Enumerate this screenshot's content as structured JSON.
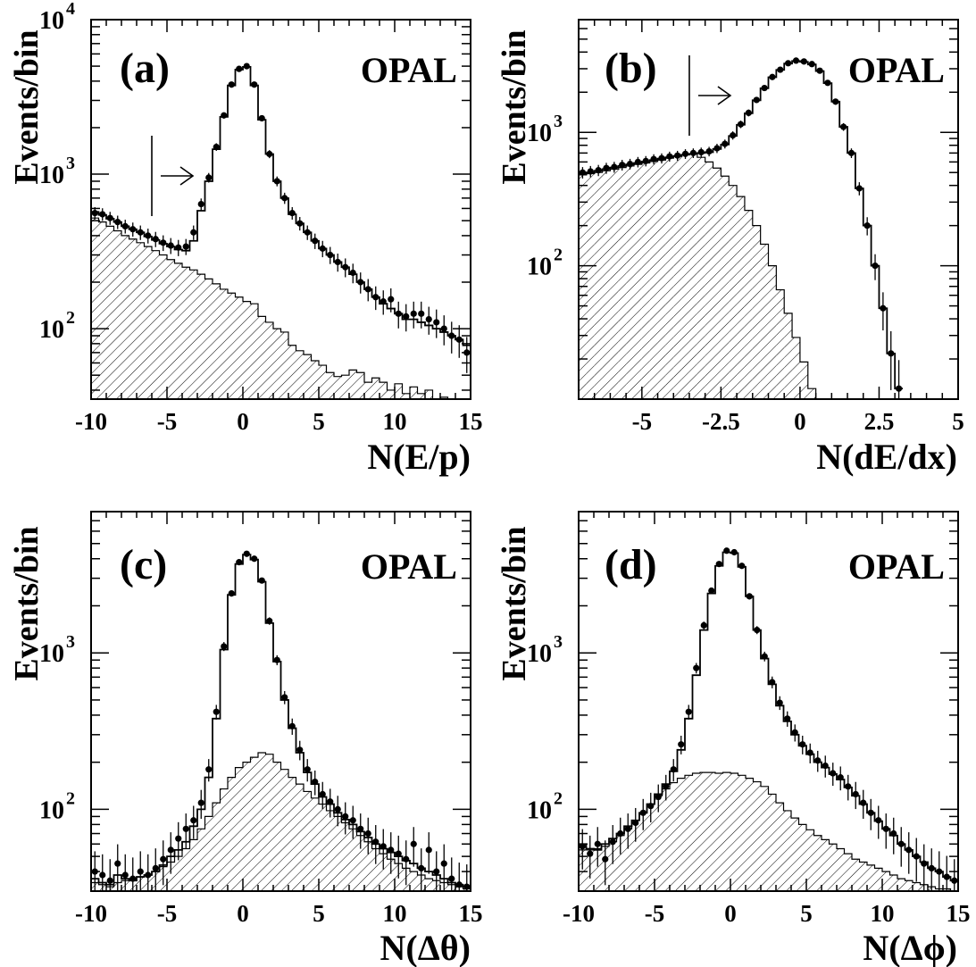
{
  "chart_data": [
    {
      "type": "histogram",
      "panel_label": "(a)",
      "experiment_label": "OPAL",
      "xlabel": "N(E/p)",
      "ylabel": "Events/bin",
      "xlim": [
        -10,
        15
      ],
      "ylim": [
        35,
        10000
      ],
      "yscale": "log",
      "xticks": [
        -10,
        -5,
        0,
        5,
        10,
        15
      ],
      "xtick_labels": [
        "-10",
        "-5",
        "0",
        "5",
        "10",
        "15"
      ],
      "yticks": [
        {
          "value": 100,
          "label_base": "10",
          "label_exp": "2"
        },
        {
          "value": 1000,
          "label_base": "10",
          "label_exp": "3"
        },
        {
          "value": 10000,
          "label_base": "10",
          "label_exp": "4"
        }
      ],
      "cut": {
        "x": -6,
        "direction": "right"
      },
      "bin_width": 0.5,
      "series": [
        {
          "role": "data_points",
          "x": [
            -9.75,
            -9.25,
            -8.75,
            -8.25,
            -7.75,
            -7.25,
            -6.75,
            -6.25,
            -5.75,
            -5.25,
            -4.75,
            -4.25,
            -3.75,
            -3.25,
            -2.75,
            -2.25,
            -1.75,
            -1.25,
            -0.75,
            -0.25,
            0.25,
            0.75,
            1.25,
            1.75,
            2.25,
            2.75,
            3.25,
            3.75,
            4.25,
            4.75,
            5.25,
            5.75,
            6.25,
            6.75,
            7.25,
            7.75,
            8.25,
            8.75,
            9.25,
            9.75,
            10.25,
            10.75,
            11.25,
            11.75,
            12.25,
            12.75,
            13.25,
            13.75,
            14.25,
            14.75
          ],
          "y": [
            560,
            550,
            520,
            490,
            460,
            440,
            420,
            400,
            380,
            360,
            345,
            335,
            340,
            420,
            640,
            950,
            1500,
            2400,
            3800,
            4800,
            5000,
            3800,
            2300,
            1350,
            900,
            700,
            560,
            480,
            420,
            370,
            330,
            300,
            270,
            250,
            230,
            200,
            180,
            160,
            150,
            155,
            125,
            120,
            125,
            125,
            115,
            110,
            100,
            90,
            85,
            70
          ]
        },
        {
          "role": "mc_total",
          "y": [
            570,
            545,
            515,
            490,
            460,
            440,
            420,
            395,
            375,
            355,
            340,
            325,
            320,
            370,
            580,
            900,
            1450,
            2350,
            3750,
            4750,
            4950,
            3750,
            2250,
            1350,
            900,
            700,
            550,
            480,
            420,
            370,
            330,
            300,
            270,
            250,
            225,
            200,
            180,
            160,
            145,
            135,
            125,
            115,
            115,
            110,
            105,
            100,
            95,
            90,
            85,
            78
          ]
        },
        {
          "role": "mc_background",
          "y": [
            520,
            490,
            460,
            430,
            400,
            380,
            360,
            340,
            320,
            300,
            280,
            265,
            250,
            240,
            225,
            210,
            195,
            180,
            170,
            160,
            150,
            145,
            120,
            110,
            100,
            95,
            78,
            72,
            68,
            62,
            58,
            52,
            49,
            50,
            54,
            52,
            45,
            48,
            45,
            40,
            44,
            38,
            42,
            38,
            40,
            35,
            36,
            35,
            35,
            35
          ]
        }
      ]
    },
    {
      "type": "histogram",
      "panel_label": "(b)",
      "experiment_label": "OPAL",
      "xlabel": "N(dE/dx)",
      "ylabel": "Events/bin",
      "xlim": [
        -7,
        5
      ],
      "ylim": [
        10,
        7000
      ],
      "yscale": "log",
      "xticks": [
        -5,
        -2.5,
        0,
        2.5,
        5
      ],
      "xtick_labels": [
        "-5",
        "-2.5",
        "0",
        "2.5",
        "5"
      ],
      "yticks": [
        {
          "value": 100,
          "label_base": "10",
          "label_exp": "2"
        },
        {
          "value": 1000,
          "label_base": "10",
          "label_exp": "3"
        }
      ],
      "cut": {
        "x": -3.5,
        "direction": "right"
      },
      "bin_width": 0.25,
      "series": [
        {
          "role": "data_points",
          "x": [
            -6.875,
            -6.625,
            -6.375,
            -6.125,
            -5.875,
            -5.625,
            -5.375,
            -5.125,
            -4.875,
            -4.625,
            -4.375,
            -4.125,
            -3.875,
            -3.625,
            -3.375,
            -3.125,
            -2.875,
            -2.625,
            -2.375,
            -2.125,
            -1.875,
            -1.625,
            -1.375,
            -1.125,
            -0.875,
            -0.625,
            -0.375,
            -0.125,
            0.125,
            0.375,
            0.625,
            0.875,
            1.125,
            1.375,
            1.625,
            1.875,
            2.125,
            2.375,
            2.625,
            2.875,
            3.125
          ],
          "y": [
            500,
            510,
            520,
            540,
            550,
            570,
            580,
            600,
            610,
            630,
            640,
            660,
            670,
            690,
            700,
            710,
            720,
            760,
            820,
            950,
            1150,
            1400,
            1750,
            2150,
            2600,
            2950,
            3300,
            3450,
            3400,
            3250,
            2900,
            2350,
            1700,
            1100,
            700,
            380,
            200,
            100,
            48,
            22,
            12
          ]
        },
        {
          "role": "mc_total",
          "y": [
            490,
            500,
            515,
            530,
            545,
            560,
            575,
            590,
            605,
            620,
            635,
            650,
            665,
            680,
            690,
            700,
            710,
            750,
            810,
            940,
            1140,
            1390,
            1740,
            2140,
            2590,
            2940,
            3280,
            3430,
            3380,
            3230,
            2880,
            2340,
            1700,
            1100,
            700,
            380,
            200,
            100,
            48,
            22,
            12
          ]
        },
        {
          "role": "mc_background",
          "y": [
            480,
            490,
            500,
            515,
            530,
            545,
            560,
            575,
            590,
            605,
            620,
            640,
            660,
            680,
            690,
            650,
            600,
            540,
            470,
            400,
            330,
            260,
            200,
            145,
            100,
            66,
            44,
            29,
            19,
            12,
            10,
            10,
            10,
            10,
            10,
            10,
            10,
            10,
            10,
            10,
            10
          ]
        }
      ]
    },
    {
      "type": "histogram",
      "panel_label": "(c)",
      "experiment_label": "OPAL",
      "xlabel": "N(Δθ)",
      "ylabel": "Events/bin",
      "xlim": [
        -10,
        15
      ],
      "ylim": [
        30,
        8000
      ],
      "yscale": "log",
      "xticks": [
        -10,
        -5,
        0,
        5,
        10,
        15
      ],
      "xtick_labels": [
        "-10",
        "-5",
        "0",
        "5",
        "10",
        "15"
      ],
      "yticks": [
        {
          "value": 100,
          "label_base": "10",
          "label_exp": "2"
        },
        {
          "value": 1000,
          "label_base": "10",
          "label_exp": "3"
        }
      ],
      "bin_width": 0.5,
      "series": [
        {
          "role": "data_points",
          "x": [
            -9.75,
            -9.25,
            -8.75,
            -8.25,
            -7.75,
            -7.25,
            -6.75,
            -6.25,
            -5.75,
            -5.25,
            -4.75,
            -4.25,
            -3.75,
            -3.25,
            -2.75,
            -2.25,
            -1.75,
            -1.25,
            -0.75,
            -0.25,
            0.25,
            0.75,
            1.25,
            1.75,
            2.25,
            2.75,
            3.25,
            3.75,
            4.25,
            4.75,
            5.25,
            5.75,
            6.25,
            6.75,
            7.25,
            7.75,
            8.25,
            8.75,
            9.25,
            9.75,
            10.25,
            10.75,
            11.25,
            11.75,
            12.25,
            12.75,
            13.25,
            13.75,
            14.25,
            14.75
          ],
          "y": [
            40,
            38,
            35,
            45,
            38,
            36,
            40,
            38,
            42,
            48,
            55,
            65,
            75,
            85,
            110,
            180,
            420,
            1100,
            2400,
            3800,
            4300,
            4000,
            2900,
            1600,
            900,
            520,
            340,
            240,
            180,
            150,
            125,
            112,
            100,
            90,
            85,
            75,
            70,
            62,
            58,
            55,
            52,
            48,
            60,
            42,
            55,
            40,
            45,
            36,
            33,
            32
          ]
        },
        {
          "role": "mc_total",
          "y": [
            36,
            34,
            33,
            38,
            36,
            35,
            37,
            38,
            40,
            44,
            50,
            55,
            62,
            78,
            100,
            160,
            380,
            1050,
            2350,
            3700,
            4250,
            3950,
            2850,
            1550,
            880,
            500,
            330,
            230,
            172,
            145,
            120,
            108,
            95,
            86,
            80,
            72,
            66,
            60,
            56,
            53,
            50,
            47,
            45,
            42,
            40,
            38,
            36,
            34,
            33,
            32
          ]
        },
        {
          "role": "mc_background",
          "y": [
            34,
            33,
            32,
            34,
            35,
            36,
            37,
            38,
            40,
            43,
            46,
            50,
            56,
            64,
            75,
            90,
            110,
            135,
            160,
            185,
            200,
            215,
            230,
            225,
            200,
            180,
            160,
            145,
            130,
            118,
            108,
            98,
            90,
            82,
            75,
            68,
            62,
            56,
            52,
            48,
            45,
            42,
            40,
            38,
            36,
            35,
            34,
            33,
            32,
            31
          ]
        }
      ]
    },
    {
      "type": "histogram",
      "panel_label": "(d)",
      "experiment_label": "OPAL",
      "xlabel": "N(Δϕ)",
      "ylabel": "Events/bin",
      "xlim": [
        -10,
        15
      ],
      "ylim": [
        30,
        8000
      ],
      "yscale": "log",
      "xticks": [
        -10,
        -5,
        0,
        5,
        10,
        15
      ],
      "xtick_labels": [
        "-10",
        "-5",
        "0",
        "5",
        "10",
        "15"
      ],
      "yticks": [
        {
          "value": 100,
          "label_base": "10",
          "label_exp": "2"
        },
        {
          "value": 1000,
          "label_base": "10",
          "label_exp": "3"
        }
      ],
      "bin_width": 0.5,
      "series": [
        {
          "role": "data_points",
          "x": [
            -9.75,
            -9.25,
            -8.75,
            -8.25,
            -7.75,
            -7.25,
            -6.75,
            -6.25,
            -5.75,
            -5.25,
            -4.75,
            -4.25,
            -3.75,
            -3.25,
            -2.75,
            -2.25,
            -1.75,
            -1.25,
            -0.75,
            -0.25,
            0.25,
            0.75,
            1.25,
            1.75,
            2.25,
            2.75,
            3.25,
            3.75,
            4.25,
            4.75,
            5.25,
            5.75,
            6.25,
            6.75,
            7.25,
            7.75,
            8.25,
            8.75,
            9.25,
            9.75,
            10.25,
            10.75,
            11.25,
            11.75,
            12.25,
            12.75,
            13.25,
            13.75,
            14.25,
            14.75
          ],
          "y": [
            58,
            52,
            60,
            48,
            62,
            70,
            75,
            82,
            95,
            105,
            120,
            140,
            180,
            260,
            420,
            800,
            1500,
            2500,
            3700,
            4500,
            4400,
            3600,
            2300,
            1400,
            950,
            650,
            480,
            380,
            310,
            260,
            230,
            205,
            190,
            170,
            160,
            140,
            125,
            110,
            95,
            85,
            75,
            70,
            60,
            55,
            50,
            45,
            42,
            40,
            37,
            35
          ]
        },
        {
          "role": "mc_total",
          "y": [
            60,
            56,
            55,
            60,
            65,
            70,
            78,
            85,
            95,
            108,
            125,
            145,
            175,
            240,
            380,
            720,
            1400,
            2400,
            3600,
            4400,
            4350,
            3550,
            2300,
            1400,
            920,
            630,
            460,
            365,
            300,
            255,
            225,
            200,
            185,
            168,
            155,
            138,
            122,
            108,
            95,
            84,
            75,
            68,
            60,
            55,
            50,
            46,
            42,
            40,
            37,
            35
          ]
        },
        {
          "role": "mc_background",
          "y": [
            55,
            55,
            56,
            58,
            62,
            68,
            75,
            85,
            95,
            108,
            122,
            135,
            148,
            158,
            165,
            170,
            172,
            172,
            170,
            172,
            170,
            165,
            158,
            150,
            140,
            125,
            110,
            98,
            88,
            80,
            74,
            68,
            64,
            60,
            56,
            52,
            48,
            46,
            44,
            42,
            40,
            38,
            36,
            35,
            34,
            33,
            32,
            31,
            31,
            30
          ]
        }
      ]
    }
  ]
}
